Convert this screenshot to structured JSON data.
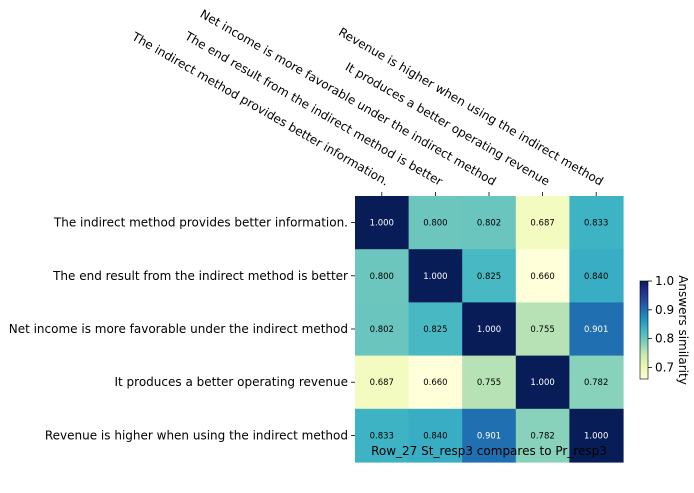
{
  "chart_data": {
    "type": "heatmap",
    "title": "",
    "xlabel": "Row_27 St_resp3 compares to Pr_resp3",
    "ylabel": "",
    "x_categories": [
      "The indirect method provides better information.",
      "The end result from the indirect method is better",
      "Net income is more favorable under the indirect method",
      "It produces a better operating revenue",
      "Revenue is higher when using the indirect method"
    ],
    "y_categories": [
      "The indirect method provides better information.",
      "The end result from the indirect method is better",
      "Net income is more favorable under the indirect method",
      "It produces a better operating revenue",
      "Revenue is higher when using the indirect method"
    ],
    "values": [
      [
        1.0,
        0.8,
        0.802,
        0.687,
        0.833
      ],
      [
        0.8,
        1.0,
        0.825,
        0.66,
        0.84
      ],
      [
        0.802,
        0.825,
        1.0,
        0.755,
        0.901
      ],
      [
        0.687,
        0.66,
        0.755,
        1.0,
        0.782
      ],
      [
        0.833,
        0.84,
        0.901,
        0.782,
        1.0
      ]
    ],
    "value_format": "0.000",
    "colormap": "YlGnBu",
    "vmin": 0.66,
    "vmax": 1.0,
    "colorbar": {
      "label": "Answers similarity",
      "ticks": [
        0.7,
        0.8,
        0.9,
        1.0
      ],
      "tick_labels": [
        "0.7",
        "0.8",
        "0.9",
        "1.0"
      ]
    }
  }
}
